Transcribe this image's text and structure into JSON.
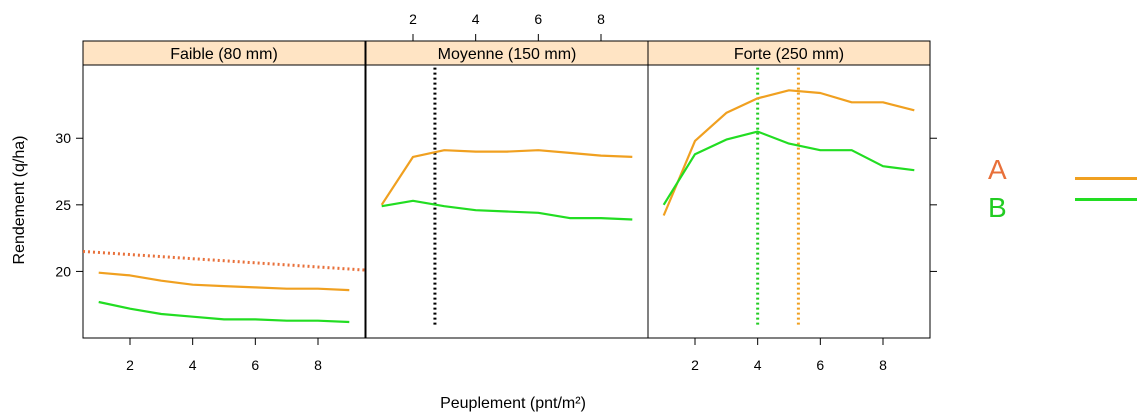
{
  "chart_data": {
    "type": "line",
    "xlabel": "Peuplement (pnt/m²)",
    "ylabel": "Rendement (q/ha)",
    "xlim": [
      0.5,
      9.5
    ],
    "ylim": [
      15,
      35.5
    ],
    "x_ticks": [
      "2",
      "4",
      "6",
      "8"
    ],
    "y_ticks": [
      "20",
      "25",
      "30"
    ],
    "x_tick_values": [
      2,
      4,
      6,
      8
    ],
    "y_tick_values": [
      20,
      25,
      30
    ],
    "grid": false,
    "legend_position": "right",
    "panels": [
      {
        "title": "Faible (80 mm)",
        "series": [
          {
            "name": "A",
            "color": "#f0a020",
            "x": [
              1,
              2,
              3,
              4,
              5,
              6,
              7,
              8,
              9
            ],
            "values": [
              19.9,
              19.7,
              19.3,
              19.0,
              18.9,
              18.8,
              18.7,
              18.7,
              18.6
            ]
          },
          {
            "name": "B",
            "color": "#22dd22",
            "x": [
              1,
              2,
              3,
              4,
              5,
              6,
              7,
              8,
              9
            ],
            "values": [
              17.7,
              17.2,
              16.8,
              16.6,
              16.4,
              16.4,
              16.3,
              16.3,
              16.2
            ]
          }
        ],
        "reference_lines": [
          {
            "kind": "sloped",
            "color": "#e8703a",
            "x": [
              0.5,
              9.5
            ],
            "y": [
              21.5,
              20.1
            ]
          }
        ]
      },
      {
        "title": "Moyenne (150 mm)",
        "series": [
          {
            "name": "A",
            "color": "#f0a020",
            "x": [
              1,
              2,
              3,
              4,
              5,
              6,
              7,
              8,
              9
            ],
            "values": [
              25.0,
              28.6,
              29.1,
              29.0,
              29.0,
              29.1,
              28.9,
              28.7,
              28.6
            ]
          },
          {
            "name": "B",
            "color": "#22dd22",
            "x": [
              1,
              2,
              3,
              4,
              5,
              6,
              7,
              8,
              9
            ],
            "values": [
              24.9,
              25.3,
              24.9,
              24.6,
              24.5,
              24.4,
              24.0,
              24.0,
              23.9
            ]
          }
        ],
        "reference_lines": [
          {
            "kind": "vertical",
            "color": "#000000",
            "x": 2.7,
            "y": [
              16.0,
              35.5
            ]
          }
        ]
      },
      {
        "title": "Forte (250 mm)",
        "series": [
          {
            "name": "A",
            "color": "#f0a020",
            "x": [
              1,
              2,
              3,
              4,
              5,
              6,
              7,
              8,
              9
            ],
            "values": [
              24.2,
              29.8,
              31.9,
              33.0,
              33.6,
              33.4,
              32.7,
              32.7,
              32.1
            ]
          },
          {
            "name": "B",
            "color": "#22dd22",
            "x": [
              1,
              2,
              3,
              4,
              5,
              6,
              7,
              8,
              9
            ],
            "values": [
              25.0,
              28.8,
              29.9,
              30.5,
              29.6,
              29.1,
              29.1,
              27.9,
              27.6
            ]
          }
        ],
        "reference_lines": [
          {
            "kind": "vertical",
            "color": "#22cc22",
            "x": 4.0,
            "y": [
              16.0,
              35.5
            ]
          },
          {
            "kind": "vertical",
            "color": "#f0a020",
            "x": 5.3,
            "y": [
              16.0,
              35.5
            ]
          }
        ]
      }
    ],
    "legend": [
      {
        "label": "A",
        "text_color": "#e8703a",
        "line_color": "#f0a020"
      },
      {
        "label": "B",
        "text_color": "#22cc22",
        "line_color": "#22dd22"
      }
    ],
    "strip_color": "#ffe4c4"
  }
}
